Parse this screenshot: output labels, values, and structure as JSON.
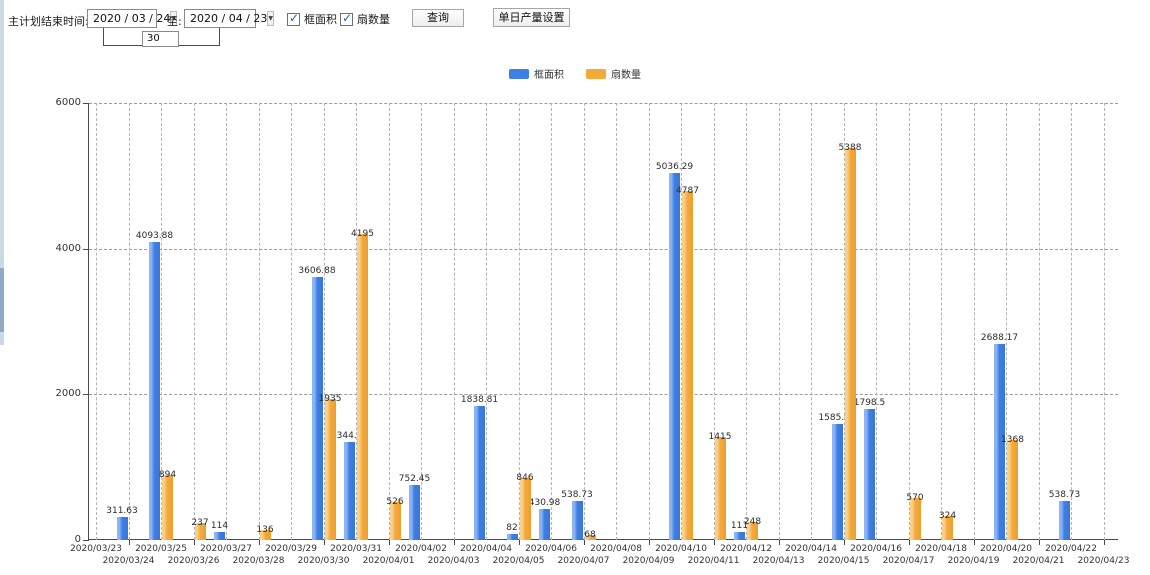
{
  "toolbar": {
    "label_start": "主计划结束时间:",
    "start_date": "2020 / 03 / 24",
    "label_to": "至:",
    "end_date": "2020 / 04 / 23",
    "interval_days": "30",
    "checkbox_frame_area": "框面积",
    "checkbox_fan_count": "扇数量",
    "checkbox_frame_area_checked": true,
    "checkbox_fan_count_checked": true,
    "query_button": "查询",
    "daily_output_button": "单日产量设置"
  },
  "chart_data": {
    "type": "bar",
    "title": "",
    "xlabel": "",
    "ylabel": "",
    "ylim": [
      0,
      6000
    ],
    "yticks": [
      0,
      2000,
      4000,
      6000
    ],
    "grid": true,
    "legend_position": "top",
    "categories": [
      "2020/03/23",
      "2020/03/24",
      "2020/03/25",
      "2020/03/26",
      "2020/03/27",
      "2020/03/28",
      "2020/03/29",
      "2020/03/30",
      "2020/03/31",
      "2020/04/01",
      "2020/04/02",
      "2020/04/03",
      "2020/04/04",
      "2020/04/05",
      "2020/04/06",
      "2020/04/07",
      "2020/04/08",
      "2020/04/09",
      "2020/04/10",
      "2020/04/11",
      "2020/04/12",
      "2020/04/13",
      "2020/04/14",
      "2020/04/15",
      "2020/04/16",
      "2020/04/17",
      "2020/04/18",
      "2020/04/19",
      "2020/04/20",
      "2020/04/21",
      "2020/04/22",
      "2020/04/23"
    ],
    "series": [
      {
        "name": "框面积",
        "key": "frame-area",
        "color": "#3f7ee3",
        "values": [
          null,
          311.63,
          4093.88,
          null,
          114,
          null,
          null,
          3606.88,
          1344.95,
          null,
          752.45,
          null,
          1838.81,
          82,
          430.98,
          538.73,
          null,
          null,
          5036.29,
          null,
          111,
          null,
          null,
          1585.96,
          1798.5,
          null,
          null,
          null,
          2688.17,
          null,
          538.73,
          null
        ]
      },
      {
        "name": "扇数量",
        "key": "fan-count",
        "color": "#f3a93c",
        "values": [
          null,
          null,
          894,
          237,
          null,
          136,
          null,
          1935,
          4195,
          526,
          null,
          null,
          null,
          846,
          null,
          68,
          null,
          null,
          4787,
          1415,
          248,
          null,
          null,
          5388,
          null,
          570,
          324,
          null,
          1368,
          null,
          null,
          null
        ]
      }
    ]
  }
}
